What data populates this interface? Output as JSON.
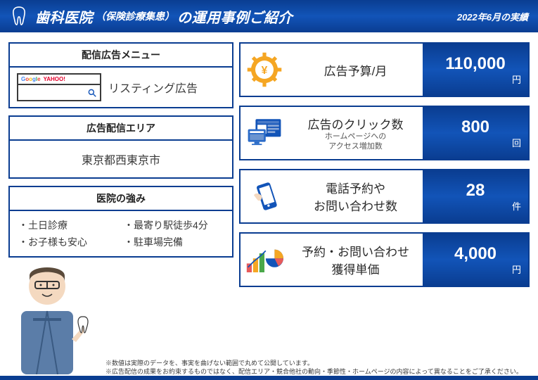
{
  "brand_color": "#0a3d91",
  "header": {
    "title_pre": "歯科医院",
    "title_sub": "（保険診療集患）",
    "title_post": "の運用事例ご紹介",
    "date_label": "2022年6月の実績"
  },
  "left": {
    "menu": {
      "header": "配信広告メニュー",
      "label": "リスティング広告",
      "google": "Google",
      "yahoo": "YAHOO!"
    },
    "area": {
      "header": "広告配信エリア",
      "value": "東京都西東京市"
    },
    "strengths": {
      "header": "医院の強み",
      "items": [
        "・土日診療",
        "・最寄り駅徒歩4分",
        "・お子様も安心",
        "・駐車場完備"
      ]
    }
  },
  "metrics": [
    {
      "label": "広告予算/月",
      "sub": "",
      "value": "110,000",
      "unit": "円",
      "icon": "yen-gear"
    },
    {
      "label": "広告のクリック数",
      "sub": "ホームページへの\nアクセス増加数",
      "value": "800",
      "unit": "回",
      "icon": "screens"
    },
    {
      "label": "電話予約や\nお問い合わせ数",
      "sub": "",
      "value": "28",
      "unit": "件",
      "icon": "phone"
    },
    {
      "label": "予約・お問い合わせ\n獲得単価",
      "sub": "",
      "value": "4,000",
      "unit": "円",
      "icon": "chart"
    }
  ],
  "footnotes": [
    "※数値は実際のデータを、事実を曲げない範囲で丸めて公開しています。",
    "※広告配信の成果をお約束するものではなく、配信エリア・競合他社の動向・季節性・ホームページの内容によって異なることをご了承ください。"
  ]
}
